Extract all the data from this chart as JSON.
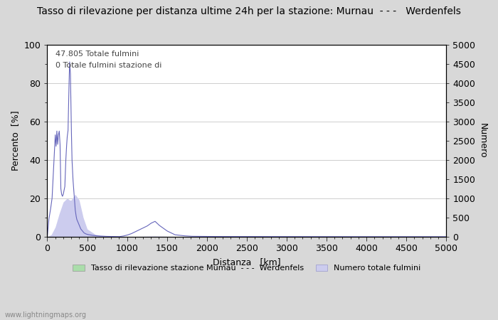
{
  "title": "Tasso di rilevazione per distanza ultime 24h per la stazione: Murnau  - - -   Werdenfels",
  "xlabel": "Distanza   [km]",
  "ylabel_left": "Percento  [%]",
  "ylabel_right": "Numero",
  "annotation_line1": "47.805 Totale fulmini",
  "annotation_line2": "0 Totale fulmini stazione di",
  "legend_label1": "Tasso di rilevazione stazione Mumau  - - -  Werdenfels",
  "legend_label2": "Numero totale fulmini",
  "watermark": "www.lightningmaps.org",
  "xlim": [
    0,
    5000
  ],
  "ylim_left": [
    0,
    100
  ],
  "ylim_right": [
    0,
    5000
  ],
  "xticks": [
    0,
    500,
    1000,
    1500,
    2000,
    2500,
    3000,
    3500,
    4000,
    4500,
    5000
  ],
  "yticks_left": [
    0,
    20,
    40,
    60,
    80,
    100
  ],
  "yticks_right": [
    0,
    500,
    1000,
    1500,
    2000,
    2500,
    3000,
    3500,
    4000,
    4500,
    5000
  ],
  "bg_color": "#d8d8d8",
  "plot_bg_color": "#ffffff",
  "line_color": "#6666bb",
  "fill_color": "#ccccee",
  "legend_fill_color1": "#aaddaa",
  "legend_fill_color2": "#ccccee",
  "grid_color": "#bbbbbb",
  "font_size": 9,
  "figsize": [
    7.0,
    4.5
  ],
  "dpi": 100,
  "rate_x": [
    0,
    20,
    40,
    60,
    80,
    100,
    110,
    120,
    130,
    140,
    150,
    160,
    170,
    180,
    190,
    200,
    210,
    220,
    230,
    240,
    250,
    260,
    270,
    280,
    290,
    300,
    310,
    320,
    330,
    340,
    350,
    360,
    370,
    380,
    400,
    420,
    440,
    460,
    480,
    500,
    550,
    600,
    650,
    700,
    800,
    900,
    950,
    1000,
    1050,
    1100,
    1150,
    1200,
    1250,
    1300,
    1350,
    1400,
    1450,
    1500,
    1550,
    1600,
    1700,
    1800,
    2000,
    2500,
    3000,
    4000,
    5000
  ],
  "rate_y": [
    0,
    9,
    14,
    20,
    36,
    53,
    47,
    55,
    48,
    53,
    55,
    48,
    25,
    22,
    21,
    22,
    24,
    26,
    38,
    46,
    52,
    55,
    75,
    91,
    85,
    59,
    40,
    31,
    25,
    20,
    14,
    11,
    9,
    8,
    6,
    4,
    3,
    2,
    1.5,
    1.2,
    0.8,
    0.5,
    0.3,
    0.2,
    0.1,
    0,
    0.3,
    0.8,
    1.5,
    2.5,
    3.5,
    4.5,
    5.5,
    7.0,
    8.0,
    6.0,
    4.5,
    3.0,
    2.0,
    1.0,
    0.5,
    0.2,
    0.1,
    0.05,
    0.05,
    0.0,
    0.0
  ],
  "count_x": [
    0,
    50,
    100,
    150,
    200,
    250,
    280,
    300,
    350,
    400,
    450,
    500,
    600,
    700,
    800,
    900,
    1000,
    1050,
    1100,
    1150,
    1200,
    1250,
    1300,
    1350,
    1400,
    1450,
    1500,
    1550,
    1600,
    1700,
    2000,
    3000,
    5000
  ],
  "count_y": [
    0,
    50,
    250,
    600,
    900,
    1000,
    950,
    950,
    1100,
    950,
    500,
    200,
    60,
    30,
    15,
    5,
    2,
    4,
    6,
    8,
    10,
    12,
    15,
    17,
    14,
    12,
    9,
    7,
    5,
    2,
    1,
    0,
    0
  ]
}
